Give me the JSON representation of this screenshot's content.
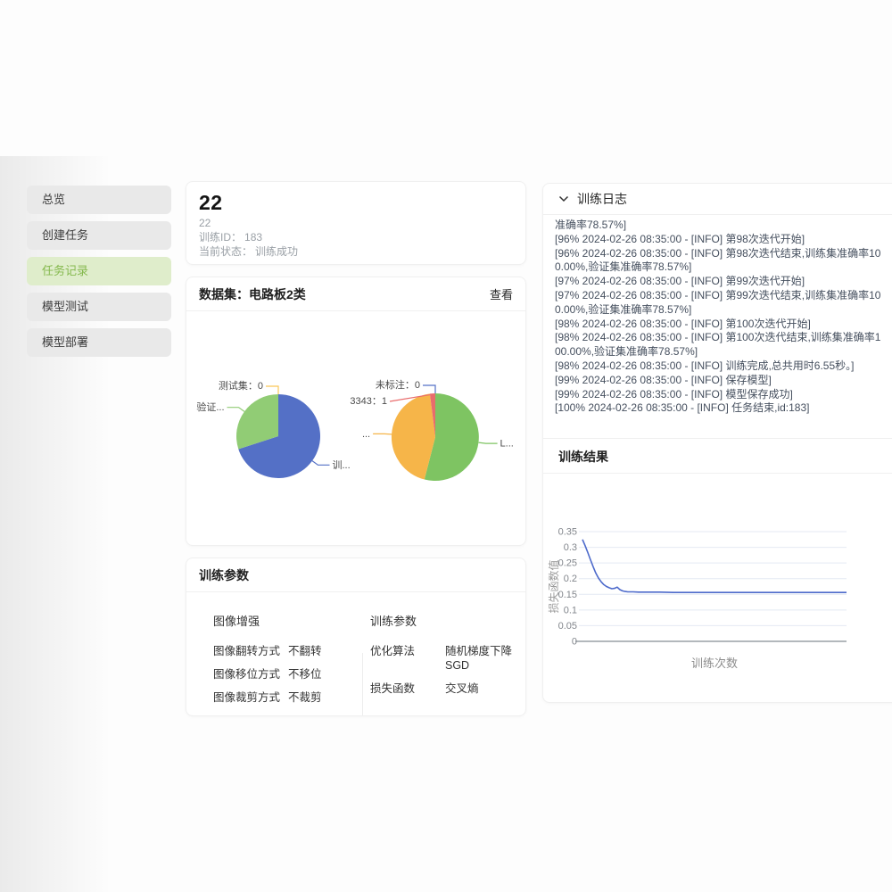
{
  "sidebar": {
    "items": [
      {
        "label": "总览",
        "active": false
      },
      {
        "label": "创建任务",
        "active": false
      },
      {
        "label": "任务记录",
        "active": true
      },
      {
        "label": "模型测试",
        "active": false
      },
      {
        "label": "模型部署",
        "active": false
      }
    ]
  },
  "overview": {
    "title": "22",
    "subtitle": "22",
    "rows": [
      {
        "label": "训练ID：",
        "value": "183"
      },
      {
        "label": "当前状态：",
        "value": "训练成功"
      }
    ]
  },
  "dataset": {
    "title": "数据集：电路板2类",
    "action": "查看"
  },
  "params": {
    "title": "训练参数",
    "groups": [
      {
        "title": "图像增强",
        "rows": [
          {
            "label": "图像翻转方式",
            "value": "不翻转"
          },
          {
            "label": "图像移位方式",
            "value": "不移位"
          },
          {
            "label": "图像裁剪方式",
            "value": "不裁剪"
          }
        ]
      },
      {
        "title": "训练参数",
        "rows": [
          {
            "label": "优化算法",
            "value": "随机梯度下降 SGD"
          },
          {
            "label": "损失函数",
            "value": "交叉熵"
          }
        ]
      }
    ]
  },
  "log": {
    "title": "训练日志",
    "lines": [
      "准确率78.57%]",
      "[96% 2024-02-26 08:35:00 - [INFO] 第98次迭代开始]",
      "[96% 2024-02-26 08:35:00 - [INFO] 第98次迭代结束,训练集准确率100.00%,验证集准确率78.57%]",
      "[97% 2024-02-26 08:35:00 - [INFO] 第99次迭代开始]",
      "[97% 2024-02-26 08:35:00 - [INFO] 第99次迭代结束,训练集准确率100.00%,验证集准确率78.57%]",
      "[98% 2024-02-26 08:35:00 - [INFO] 第100次迭代开始]",
      "[98% 2024-02-26 08:35:00 - [INFO] 第100次迭代结束,训练集准确率100.00%,验证集准确率78.57%]",
      "[98% 2024-02-26 08:35:00 - [INFO] 训练完成,总共用时6.55秒。]",
      "[99% 2024-02-26 08:35:00 - [INFO] 保存模型]",
      "[99% 2024-02-26 08:35:00 - [INFO] 模型保存成功]",
      "[100% 2024-02-26 08:35:00 - [INFO] 任务结束,id:183]"
    ]
  },
  "results": {
    "title": "训练结果"
  },
  "chart_data": [
    {
      "type": "pie",
      "slices": [
        {
          "label": "训...",
          "value": 70,
          "color": "#5470c6",
          "label_hint": "auto"
        },
        {
          "label": "验证...",
          "value": 30,
          "color": "#91cc75",
          "label_hint": "auto"
        },
        {
          "label": "测试集：0",
          "value": 0,
          "color": "#fac858",
          "label_hint": "top0"
        }
      ]
    },
    {
      "type": "pie",
      "slices": [
        {
          "label": "L...",
          "value": 54,
          "color": "#7ec462",
          "label_hint": "auto"
        },
        {
          "label": "...",
          "value": 44,
          "color": "#f6b549",
          "label_hint": "auto"
        },
        {
          "label": "3343：1",
          "value": 2,
          "color": "#e96c6c",
          "label_hint": "top1"
        },
        {
          "label": "未标注：0",
          "value": 0,
          "color": "#5470c6",
          "label_hint": "top0"
        }
      ]
    },
    {
      "type": "line",
      "xlabel": "训练次数",
      "ylabel": "损失函数值",
      "ylim": [
        0,
        0.35
      ],
      "ytick_step": 0.05,
      "color": "#4d6acb",
      "grid": true,
      "x": [
        1,
        2,
        3,
        4,
        5,
        6,
        7,
        8,
        9,
        10,
        11,
        12,
        13,
        14,
        15,
        16,
        17,
        18,
        20,
        22,
        25,
        30,
        35,
        40,
        50,
        60,
        70,
        80,
        90,
        100
      ],
      "y": [
        0.325,
        0.305,
        0.283,
        0.26,
        0.238,
        0.218,
        0.202,
        0.19,
        0.181,
        0.175,
        0.171,
        0.168,
        0.169,
        0.173,
        0.165,
        0.161,
        0.159,
        0.158,
        0.158,
        0.157,
        0.157,
        0.157,
        0.156,
        0.156,
        0.156,
        0.156,
        0.156,
        0.156,
        0.156,
        0.156
      ]
    }
  ]
}
